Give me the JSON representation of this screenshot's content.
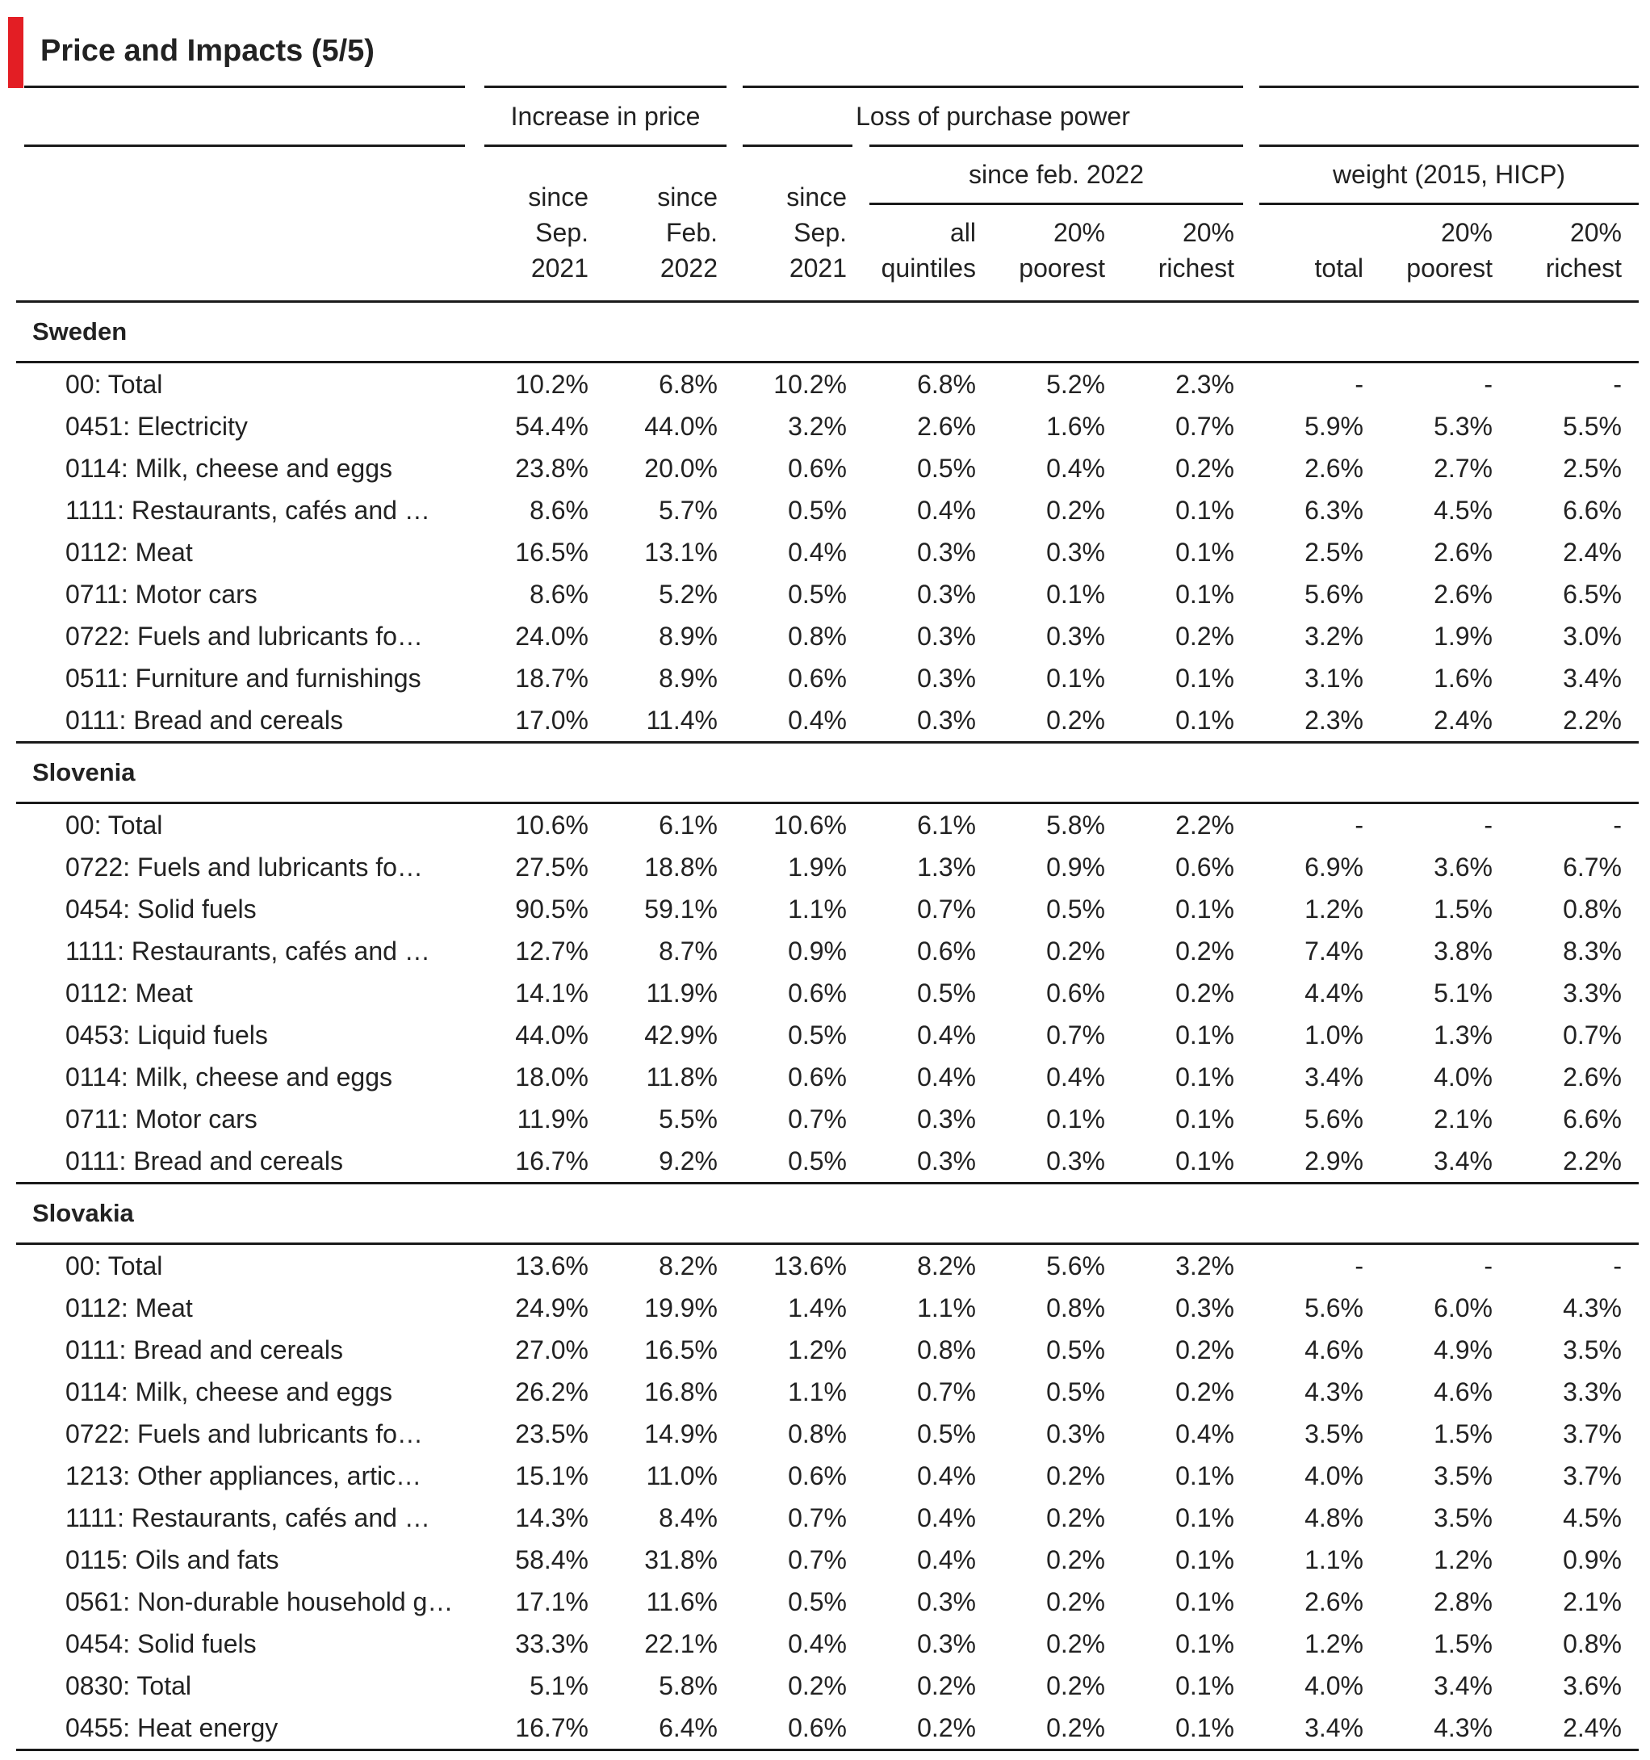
{
  "title": "Price and Impacts (5/5)",
  "colors": {
    "accent": "#e31e24",
    "rule": "#1a1a1a",
    "text": "#222222"
  },
  "header": {
    "increase_in_price": "Increase in price",
    "loss_of_purchase_power": "Loss of purchase power",
    "since_feb_2022": "since feb. 2022",
    "weight": "weight (2015, HICP)",
    "columns": [
      [
        "since",
        "Sep.",
        "2021"
      ],
      [
        "since",
        "Feb.",
        "2022"
      ],
      [
        "since",
        "Sep.",
        "2021"
      ],
      [
        "all",
        "quintiles"
      ],
      [
        "20%",
        "poorest"
      ],
      [
        "20%",
        "richest"
      ],
      [
        "total"
      ],
      [
        "20%",
        "poorest"
      ],
      [
        "20%",
        "richest"
      ]
    ]
  },
  "sections": [
    {
      "country": "Sweden",
      "rows": [
        [
          "00: Total",
          "10.2%",
          "6.8%",
          "10.2%",
          "6.8%",
          "5.2%",
          "2.3%",
          "-",
          "-",
          "-"
        ],
        [
          "0451: Electricity",
          "54.4%",
          "44.0%",
          "3.2%",
          "2.6%",
          "1.6%",
          "0.7%",
          "5.9%",
          "5.3%",
          "5.5%"
        ],
        [
          "0114: Milk, cheese and eggs",
          "23.8%",
          "20.0%",
          "0.6%",
          "0.5%",
          "0.4%",
          "0.2%",
          "2.6%",
          "2.7%",
          "2.5%"
        ],
        [
          "1111: Restaurants, cafés and …",
          "8.6%",
          "5.7%",
          "0.5%",
          "0.4%",
          "0.2%",
          "0.1%",
          "6.3%",
          "4.5%",
          "6.6%"
        ],
        [
          "0112: Meat",
          "16.5%",
          "13.1%",
          "0.4%",
          "0.3%",
          "0.3%",
          "0.1%",
          "2.5%",
          "2.6%",
          "2.4%"
        ],
        [
          "0711: Motor cars",
          "8.6%",
          "5.2%",
          "0.5%",
          "0.3%",
          "0.1%",
          "0.1%",
          "5.6%",
          "2.6%",
          "6.5%"
        ],
        [
          "0722: Fuels and lubricants fo…",
          "24.0%",
          "8.9%",
          "0.8%",
          "0.3%",
          "0.3%",
          "0.2%",
          "3.2%",
          "1.9%",
          "3.0%"
        ],
        [
          "0511: Furniture and furnishings",
          "18.7%",
          "8.9%",
          "0.6%",
          "0.3%",
          "0.1%",
          "0.1%",
          "3.1%",
          "1.6%",
          "3.4%"
        ],
        [
          "0111: Bread and cereals",
          "17.0%",
          "11.4%",
          "0.4%",
          "0.3%",
          "0.2%",
          "0.1%",
          "2.3%",
          "2.4%",
          "2.2%"
        ]
      ]
    },
    {
      "country": "Slovenia",
      "rows": [
        [
          "00: Total",
          "10.6%",
          "6.1%",
          "10.6%",
          "6.1%",
          "5.8%",
          "2.2%",
          "-",
          "-",
          "-"
        ],
        [
          "0722: Fuels and lubricants fo…",
          "27.5%",
          "18.8%",
          "1.9%",
          "1.3%",
          "0.9%",
          "0.6%",
          "6.9%",
          "3.6%",
          "6.7%"
        ],
        [
          "0454: Solid fuels",
          "90.5%",
          "59.1%",
          "1.1%",
          "0.7%",
          "0.5%",
          "0.1%",
          "1.2%",
          "1.5%",
          "0.8%"
        ],
        [
          "1111: Restaurants, cafés and …",
          "12.7%",
          "8.7%",
          "0.9%",
          "0.6%",
          "0.2%",
          "0.2%",
          "7.4%",
          "3.8%",
          "8.3%"
        ],
        [
          "0112: Meat",
          "14.1%",
          "11.9%",
          "0.6%",
          "0.5%",
          "0.6%",
          "0.2%",
          "4.4%",
          "5.1%",
          "3.3%"
        ],
        [
          "0453: Liquid fuels",
          "44.0%",
          "42.9%",
          "0.5%",
          "0.4%",
          "0.7%",
          "0.1%",
          "1.0%",
          "1.3%",
          "0.7%"
        ],
        [
          "0114: Milk, cheese and eggs",
          "18.0%",
          "11.8%",
          "0.6%",
          "0.4%",
          "0.4%",
          "0.1%",
          "3.4%",
          "4.0%",
          "2.6%"
        ],
        [
          "0711: Motor cars",
          "11.9%",
          "5.5%",
          "0.7%",
          "0.3%",
          "0.1%",
          "0.1%",
          "5.6%",
          "2.1%",
          "6.6%"
        ],
        [
          "0111: Bread and cereals",
          "16.7%",
          "9.2%",
          "0.5%",
          "0.3%",
          "0.3%",
          "0.1%",
          "2.9%",
          "3.4%",
          "2.2%"
        ]
      ]
    },
    {
      "country": "Slovakia",
      "rows": [
        [
          "00: Total",
          "13.6%",
          "8.2%",
          "13.6%",
          "8.2%",
          "5.6%",
          "3.2%",
          "-",
          "-",
          "-"
        ],
        [
          "0112: Meat",
          "24.9%",
          "19.9%",
          "1.4%",
          "1.1%",
          "0.8%",
          "0.3%",
          "5.6%",
          "6.0%",
          "4.3%"
        ],
        [
          "0111: Bread and cereals",
          "27.0%",
          "16.5%",
          "1.2%",
          "0.8%",
          "0.5%",
          "0.2%",
          "4.6%",
          "4.9%",
          "3.5%"
        ],
        [
          "0114: Milk, cheese and eggs",
          "26.2%",
          "16.8%",
          "1.1%",
          "0.7%",
          "0.5%",
          "0.2%",
          "4.3%",
          "4.6%",
          "3.3%"
        ],
        [
          "0722: Fuels and lubricants fo…",
          "23.5%",
          "14.9%",
          "0.8%",
          "0.5%",
          "0.3%",
          "0.4%",
          "3.5%",
          "1.5%",
          "3.7%"
        ],
        [
          "1213: Other appliances, artic…",
          "15.1%",
          "11.0%",
          "0.6%",
          "0.4%",
          "0.2%",
          "0.1%",
          "4.0%",
          "3.5%",
          "3.7%"
        ],
        [
          "1111: Restaurants, cafés and …",
          "14.3%",
          "8.4%",
          "0.7%",
          "0.4%",
          "0.2%",
          "0.1%",
          "4.8%",
          "3.5%",
          "4.5%"
        ],
        [
          "0115: Oils and fats",
          "58.4%",
          "31.8%",
          "0.7%",
          "0.4%",
          "0.2%",
          "0.1%",
          "1.1%",
          "1.2%",
          "0.9%"
        ],
        [
          "0561: Non-durable household g…",
          "17.1%",
          "11.6%",
          "0.5%",
          "0.3%",
          "0.2%",
          "0.1%",
          "2.6%",
          "2.8%",
          "2.1%"
        ],
        [
          "0454: Solid fuels",
          "33.3%",
          "22.1%",
          "0.4%",
          "0.3%",
          "0.2%",
          "0.1%",
          "1.2%",
          "1.5%",
          "0.8%"
        ],
        [
          "0830: Total",
          "5.1%",
          "5.8%",
          "0.2%",
          "0.2%",
          "0.2%",
          "0.1%",
          "4.0%",
          "3.4%",
          "3.6%"
        ],
        [
          "0455: Heat energy",
          "16.7%",
          "6.4%",
          "0.6%",
          "0.2%",
          "0.2%",
          "0.1%",
          "3.4%",
          "4.3%",
          "2.4%"
        ]
      ]
    }
  ]
}
